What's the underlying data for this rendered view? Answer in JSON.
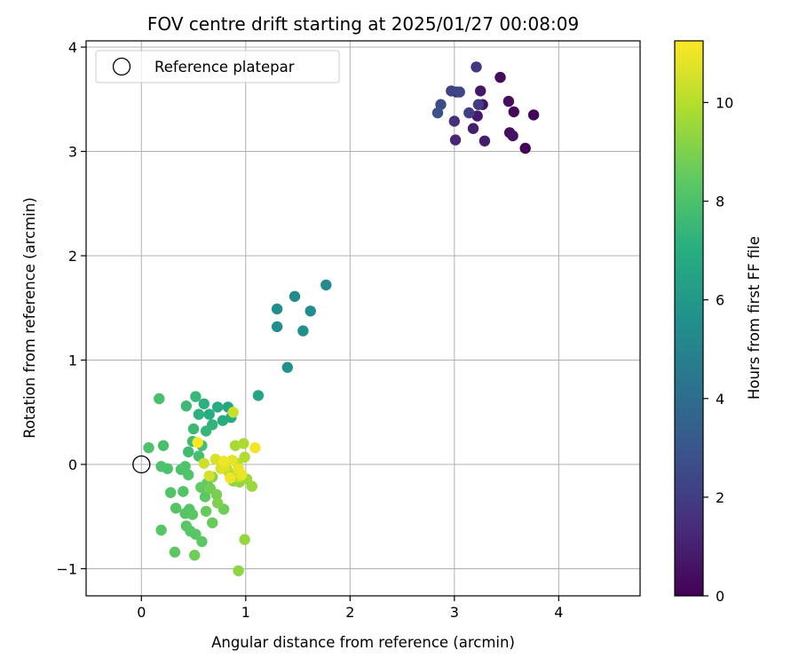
{
  "chart_data": {
    "type": "scatter",
    "title": "FOV centre drift starting at 2025/01/27 00:08:09",
    "xlabel": "Angular distance from reference (arcmin)",
    "ylabel": "Rotation from reference (arcmin)",
    "xlim": [
      -0.53,
      4.78
    ],
    "ylim": [
      -1.26,
      4.06
    ],
    "xticks": [
      0,
      1,
      2,
      3,
      4
    ],
    "yticks": [
      -1,
      0,
      1,
      2,
      3,
      4
    ],
    "grid": true,
    "legend": {
      "placement": "top-left",
      "entries": [
        "Reference platepar"
      ]
    },
    "reference_point": {
      "x": 0,
      "y": 0,
      "name": "Reference platepar"
    },
    "colorbar": {
      "label": "Hours from first FF file",
      "min": 0,
      "max": 11.25,
      "ticks": [
        0,
        2,
        4,
        6,
        8,
        10
      ],
      "colormap": "viridis"
    },
    "points": [
      {
        "x": 3.68,
        "y": 3.03,
        "c": 0.1
      },
      {
        "x": 3.76,
        "y": 3.35,
        "c": 0.15
      },
      {
        "x": 3.57,
        "y": 3.38,
        "c": 0.2
      },
      {
        "x": 3.44,
        "y": 3.71,
        "c": 0.3
      },
      {
        "x": 3.52,
        "y": 3.48,
        "c": 0.4
      },
      {
        "x": 3.53,
        "y": 3.18,
        "c": 0.45
      },
      {
        "x": 3.56,
        "y": 3.15,
        "c": 0.5
      },
      {
        "x": 3.27,
        "y": 3.45,
        "c": 0.6
      },
      {
        "x": 3.25,
        "y": 3.58,
        "c": 0.7
      },
      {
        "x": 3.22,
        "y": 3.34,
        "c": 0.8
      },
      {
        "x": 3.29,
        "y": 3.1,
        "c": 0.9
      },
      {
        "x": 3.18,
        "y": 3.22,
        "c": 1.0
      },
      {
        "x": 3.01,
        "y": 3.11,
        "c": 1.2
      },
      {
        "x": 3.02,
        "y": 3.57,
        "c": 1.4
      },
      {
        "x": 3.0,
        "y": 3.29,
        "c": 1.6
      },
      {
        "x": 3.21,
        "y": 3.81,
        "c": 1.8
      },
      {
        "x": 3.23,
        "y": 3.45,
        "c": 2.0
      },
      {
        "x": 3.14,
        "y": 3.37,
        "c": 2.1
      },
      {
        "x": 2.97,
        "y": 3.58,
        "c": 2.2
      },
      {
        "x": 3.05,
        "y": 3.57,
        "c": 2.4
      },
      {
        "x": 2.87,
        "y": 3.45,
        "c": 2.6
      },
      {
        "x": 2.84,
        "y": 3.37,
        "c": 2.8
      },
      {
        "x": 1.77,
        "y": 1.72,
        "c": 5.3
      },
      {
        "x": 1.47,
        "y": 1.61,
        "c": 5.35
      },
      {
        "x": 1.62,
        "y": 1.47,
        "c": 5.4
      },
      {
        "x": 1.3,
        "y": 1.49,
        "c": 5.5
      },
      {
        "x": 1.3,
        "y": 1.32,
        "c": 5.55
      },
      {
        "x": 1.55,
        "y": 1.28,
        "c": 5.6
      },
      {
        "x": 1.4,
        "y": 0.93,
        "c": 5.7
      },
      {
        "x": 1.12,
        "y": 0.66,
        "c": 6.6
      },
      {
        "x": 0.83,
        "y": 0.55,
        "c": 6.7
      },
      {
        "x": 0.86,
        "y": 0.45,
        "c": 6.8
      },
      {
        "x": 0.73,
        "y": 0.55,
        "c": 6.9
      },
      {
        "x": 0.65,
        "y": 0.48,
        "c": 7.0
      },
      {
        "x": 0.78,
        "y": 0.42,
        "c": 7.0
      },
      {
        "x": 0.6,
        "y": 0.58,
        "c": 7.1
      },
      {
        "x": 0.55,
        "y": 0.48,
        "c": 7.2
      },
      {
        "x": 0.68,
        "y": 0.38,
        "c": 7.3
      },
      {
        "x": 0.62,
        "y": 0.32,
        "c": 7.4
      },
      {
        "x": 0.52,
        "y": 0.65,
        "c": 7.5
      },
      {
        "x": 0.43,
        "y": 0.56,
        "c": 7.6
      },
      {
        "x": 0.5,
        "y": 0.34,
        "c": 7.6
      },
      {
        "x": 0.49,
        "y": 0.22,
        "c": 7.7
      },
      {
        "x": 0.45,
        "y": 0.12,
        "c": 7.7
      },
      {
        "x": 0.58,
        "y": 0.18,
        "c": 7.8
      },
      {
        "x": 0.55,
        "y": 0.08,
        "c": 7.8
      },
      {
        "x": 0.17,
        "y": 0.63,
        "c": 7.9
      },
      {
        "x": 0.21,
        "y": 0.18,
        "c": 7.9
      },
      {
        "x": 0.07,
        "y": 0.16,
        "c": 8.0
      },
      {
        "x": 0.19,
        "y": -0.02,
        "c": 8.0
      },
      {
        "x": 0.25,
        "y": -0.04,
        "c": 8.0
      },
      {
        "x": 0.38,
        "y": -0.05,
        "c": 8.0
      },
      {
        "x": 0.42,
        "y": -0.02,
        "c": 8.1
      },
      {
        "x": 0.45,
        "y": -0.1,
        "c": 8.1
      },
      {
        "x": 0.28,
        "y": -0.27,
        "c": 8.1
      },
      {
        "x": 0.4,
        "y": -0.26,
        "c": 8.1
      },
      {
        "x": 0.33,
        "y": -0.42,
        "c": 8.2
      },
      {
        "x": 0.42,
        "y": -0.47,
        "c": 8.2
      },
      {
        "x": 0.46,
        "y": -0.43,
        "c": 8.2
      },
      {
        "x": 0.49,
        "y": -0.48,
        "c": 8.3
      },
      {
        "x": 0.43,
        "y": -0.59,
        "c": 8.3
      },
      {
        "x": 0.47,
        "y": -0.64,
        "c": 8.3
      },
      {
        "x": 0.52,
        "y": -0.67,
        "c": 8.3
      },
      {
        "x": 0.19,
        "y": -0.63,
        "c": 8.3
      },
      {
        "x": 0.32,
        "y": -0.84,
        "c": 8.4
      },
      {
        "x": 0.58,
        "y": -0.74,
        "c": 8.4
      },
      {
        "x": 0.61,
        "y": -0.31,
        "c": 8.4
      },
      {
        "x": 0.57,
        "y": -0.22,
        "c": 8.5
      },
      {
        "x": 0.63,
        "y": -0.18,
        "c": 8.5
      },
      {
        "x": 0.68,
        "y": -0.56,
        "c": 8.6
      },
      {
        "x": 0.62,
        "y": -0.45,
        "c": 8.6
      },
      {
        "x": 0.79,
        "y": -0.43,
        "c": 8.7
      },
      {
        "x": 0.51,
        "y": -0.87,
        "c": 8.7
      },
      {
        "x": 0.66,
        "y": -0.23,
        "c": 8.8
      },
      {
        "x": 0.72,
        "y": -0.29,
        "c": 8.9
      },
      {
        "x": 0.73,
        "y": -0.37,
        "c": 9.0
      },
      {
        "x": 0.68,
        "y": -0.12,
        "c": 9.1
      },
      {
        "x": 0.82,
        "y": -0.05,
        "c": 9.2
      },
      {
        "x": 0.88,
        "y": -0.16,
        "c": 9.3
      },
      {
        "x": 0.93,
        "y": -1.02,
        "c": 9.3
      },
      {
        "x": 0.99,
        "y": -0.72,
        "c": 9.4
      },
      {
        "x": 0.94,
        "y": -0.17,
        "c": 9.4
      },
      {
        "x": 1.06,
        "y": -0.21,
        "c": 9.5
      },
      {
        "x": 1.01,
        "y": -0.14,
        "c": 9.6
      },
      {
        "x": 0.9,
        "y": 0.18,
        "c": 9.7
      },
      {
        "x": 0.98,
        "y": 0.2,
        "c": 9.8
      },
      {
        "x": 0.99,
        "y": 0.07,
        "c": 9.9
      },
      {
        "x": 0.92,
        "y": 0.01,
        "c": 10.0
      },
      {
        "x": 0.84,
        "y": -0.08,
        "c": 10.1
      },
      {
        "x": 0.93,
        "y": -0.12,
        "c": 10.2
      },
      {
        "x": 0.88,
        "y": 0.5,
        "c": 10.3
      },
      {
        "x": 0.6,
        "y": 0.01,
        "c": 10.4
      },
      {
        "x": 0.65,
        "y": -0.11,
        "c": 10.5
      },
      {
        "x": 0.71,
        "y": 0.05,
        "c": 10.6
      },
      {
        "x": 0.76,
        "y": -0.04,
        "c": 10.6
      },
      {
        "x": 0.8,
        "y": -0.02,
        "c": 10.7
      },
      {
        "x": 0.87,
        "y": 0.04,
        "c": 10.8
      },
      {
        "x": 0.93,
        "y": -0.04,
        "c": 10.9
      },
      {
        "x": 0.96,
        "y": -0.1,
        "c": 10.9
      },
      {
        "x": 0.85,
        "y": -0.13,
        "c": 11.0
      },
      {
        "x": 0.79,
        "y": 0.03,
        "c": 11.0
      },
      {
        "x": 1.09,
        "y": 0.16,
        "c": 11.1
      },
      {
        "x": 0.54,
        "y": 0.21,
        "c": 11.2
      }
    ]
  }
}
